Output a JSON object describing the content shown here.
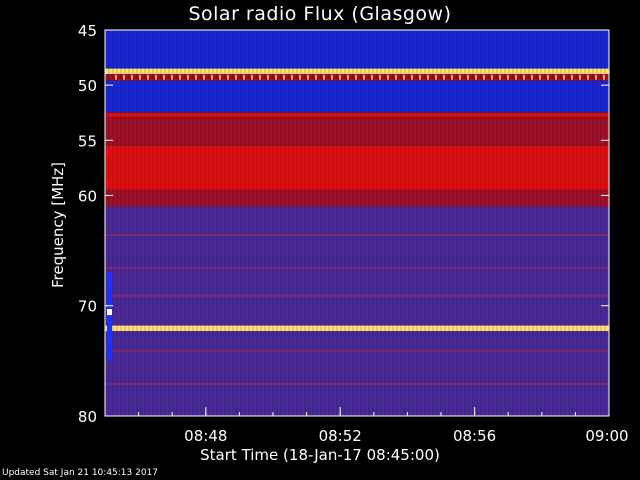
{
  "chart_data": {
    "type": "heatmap",
    "title": "Solar radio Flux (Glasgow)",
    "ylabel": "Frequency [MHz]",
    "xlabel": "Start Time (18-Jan-17 08:45:00)",
    "yticks": [
      45,
      50,
      55,
      60,
      70,
      80
    ],
    "xticks": [
      "08:48",
      "08:52",
      "08:56",
      "09:00"
    ],
    "xtick_minutes": [
      48,
      52,
      56,
      60
    ],
    "xlim_minutes": [
      45,
      60
    ],
    "ylim": [
      45,
      80
    ],
    "y_inverted": true,
    "bands": [
      {
        "from": 45.0,
        "to": 48.5,
        "level": "low"
      },
      {
        "from": 48.5,
        "to": 49.0,
        "level": "peak"
      },
      {
        "from": 49.0,
        "to": 49.6,
        "level": "medium"
      },
      {
        "from": 49.6,
        "to": 52.5,
        "level": "low"
      },
      {
        "from": 52.5,
        "to": 52.9,
        "level": "high"
      },
      {
        "from": 52.9,
        "to": 55.5,
        "level": "medium"
      },
      {
        "from": 55.5,
        "to": 59.5,
        "level": "high"
      },
      {
        "from": 59.5,
        "to": 61.0,
        "level": "medium"
      },
      {
        "from": 61.0,
        "to": 66.0,
        "level": "low-medium"
      },
      {
        "from": 66.0,
        "to": 71.8,
        "level": "low-medium"
      },
      {
        "from": 71.8,
        "to": 72.3,
        "level": "peak"
      },
      {
        "from": 72.3,
        "to": 80.0,
        "level": "low-medium"
      }
    ],
    "colors": {
      "low": "#1a28d8",
      "low-medium": "#4a2a9a",
      "medium": "#a01028",
      "high": "#e01010",
      "peak": "#ffe070"
    }
  },
  "footer": {
    "updated": "Updated Sat Jan 21 10:45:13 2017"
  }
}
